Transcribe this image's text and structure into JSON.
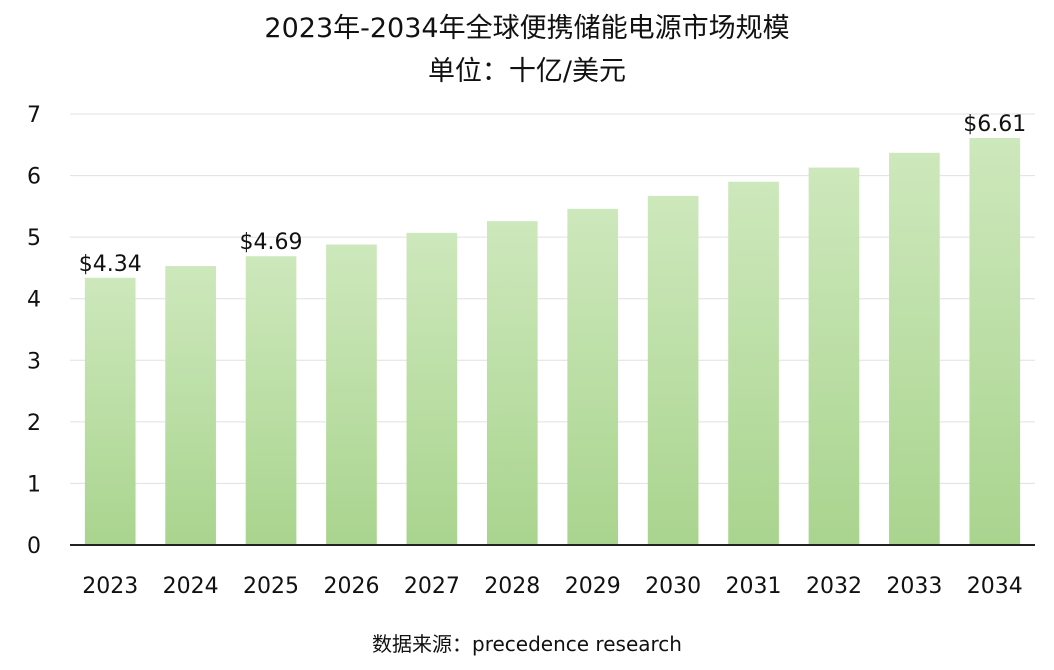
{
  "chart_data": {
    "type": "bar",
    "title": "2023年-2034年全球便携储能电源市场规模",
    "subtitle": "单位：十亿/美元",
    "xlabel": "",
    "ylabel": "",
    "categories": [
      "2023",
      "2024",
      "2025",
      "2026",
      "2027",
      "2028",
      "2029",
      "2030",
      "2031",
      "2032",
      "2033",
      "2034"
    ],
    "values": [
      4.34,
      4.53,
      4.69,
      4.88,
      5.07,
      5.26,
      5.46,
      5.67,
      5.9,
      6.13,
      6.37,
      6.61
    ],
    "data_labels": [
      "$4.34",
      "",
      "$4.69",
      "",
      "",
      "",
      "",
      "",
      "",
      "",
      "",
      "$6.61"
    ],
    "ylim": [
      0,
      7
    ],
    "yticks": [
      "0",
      "1",
      "2",
      "3",
      "4",
      "5",
      "6",
      "7"
    ],
    "grid": true,
    "bar_color_top": "#cde8bc",
    "bar_color_bottom": "#a9d48e"
  },
  "source": "数据来源：precedence research"
}
